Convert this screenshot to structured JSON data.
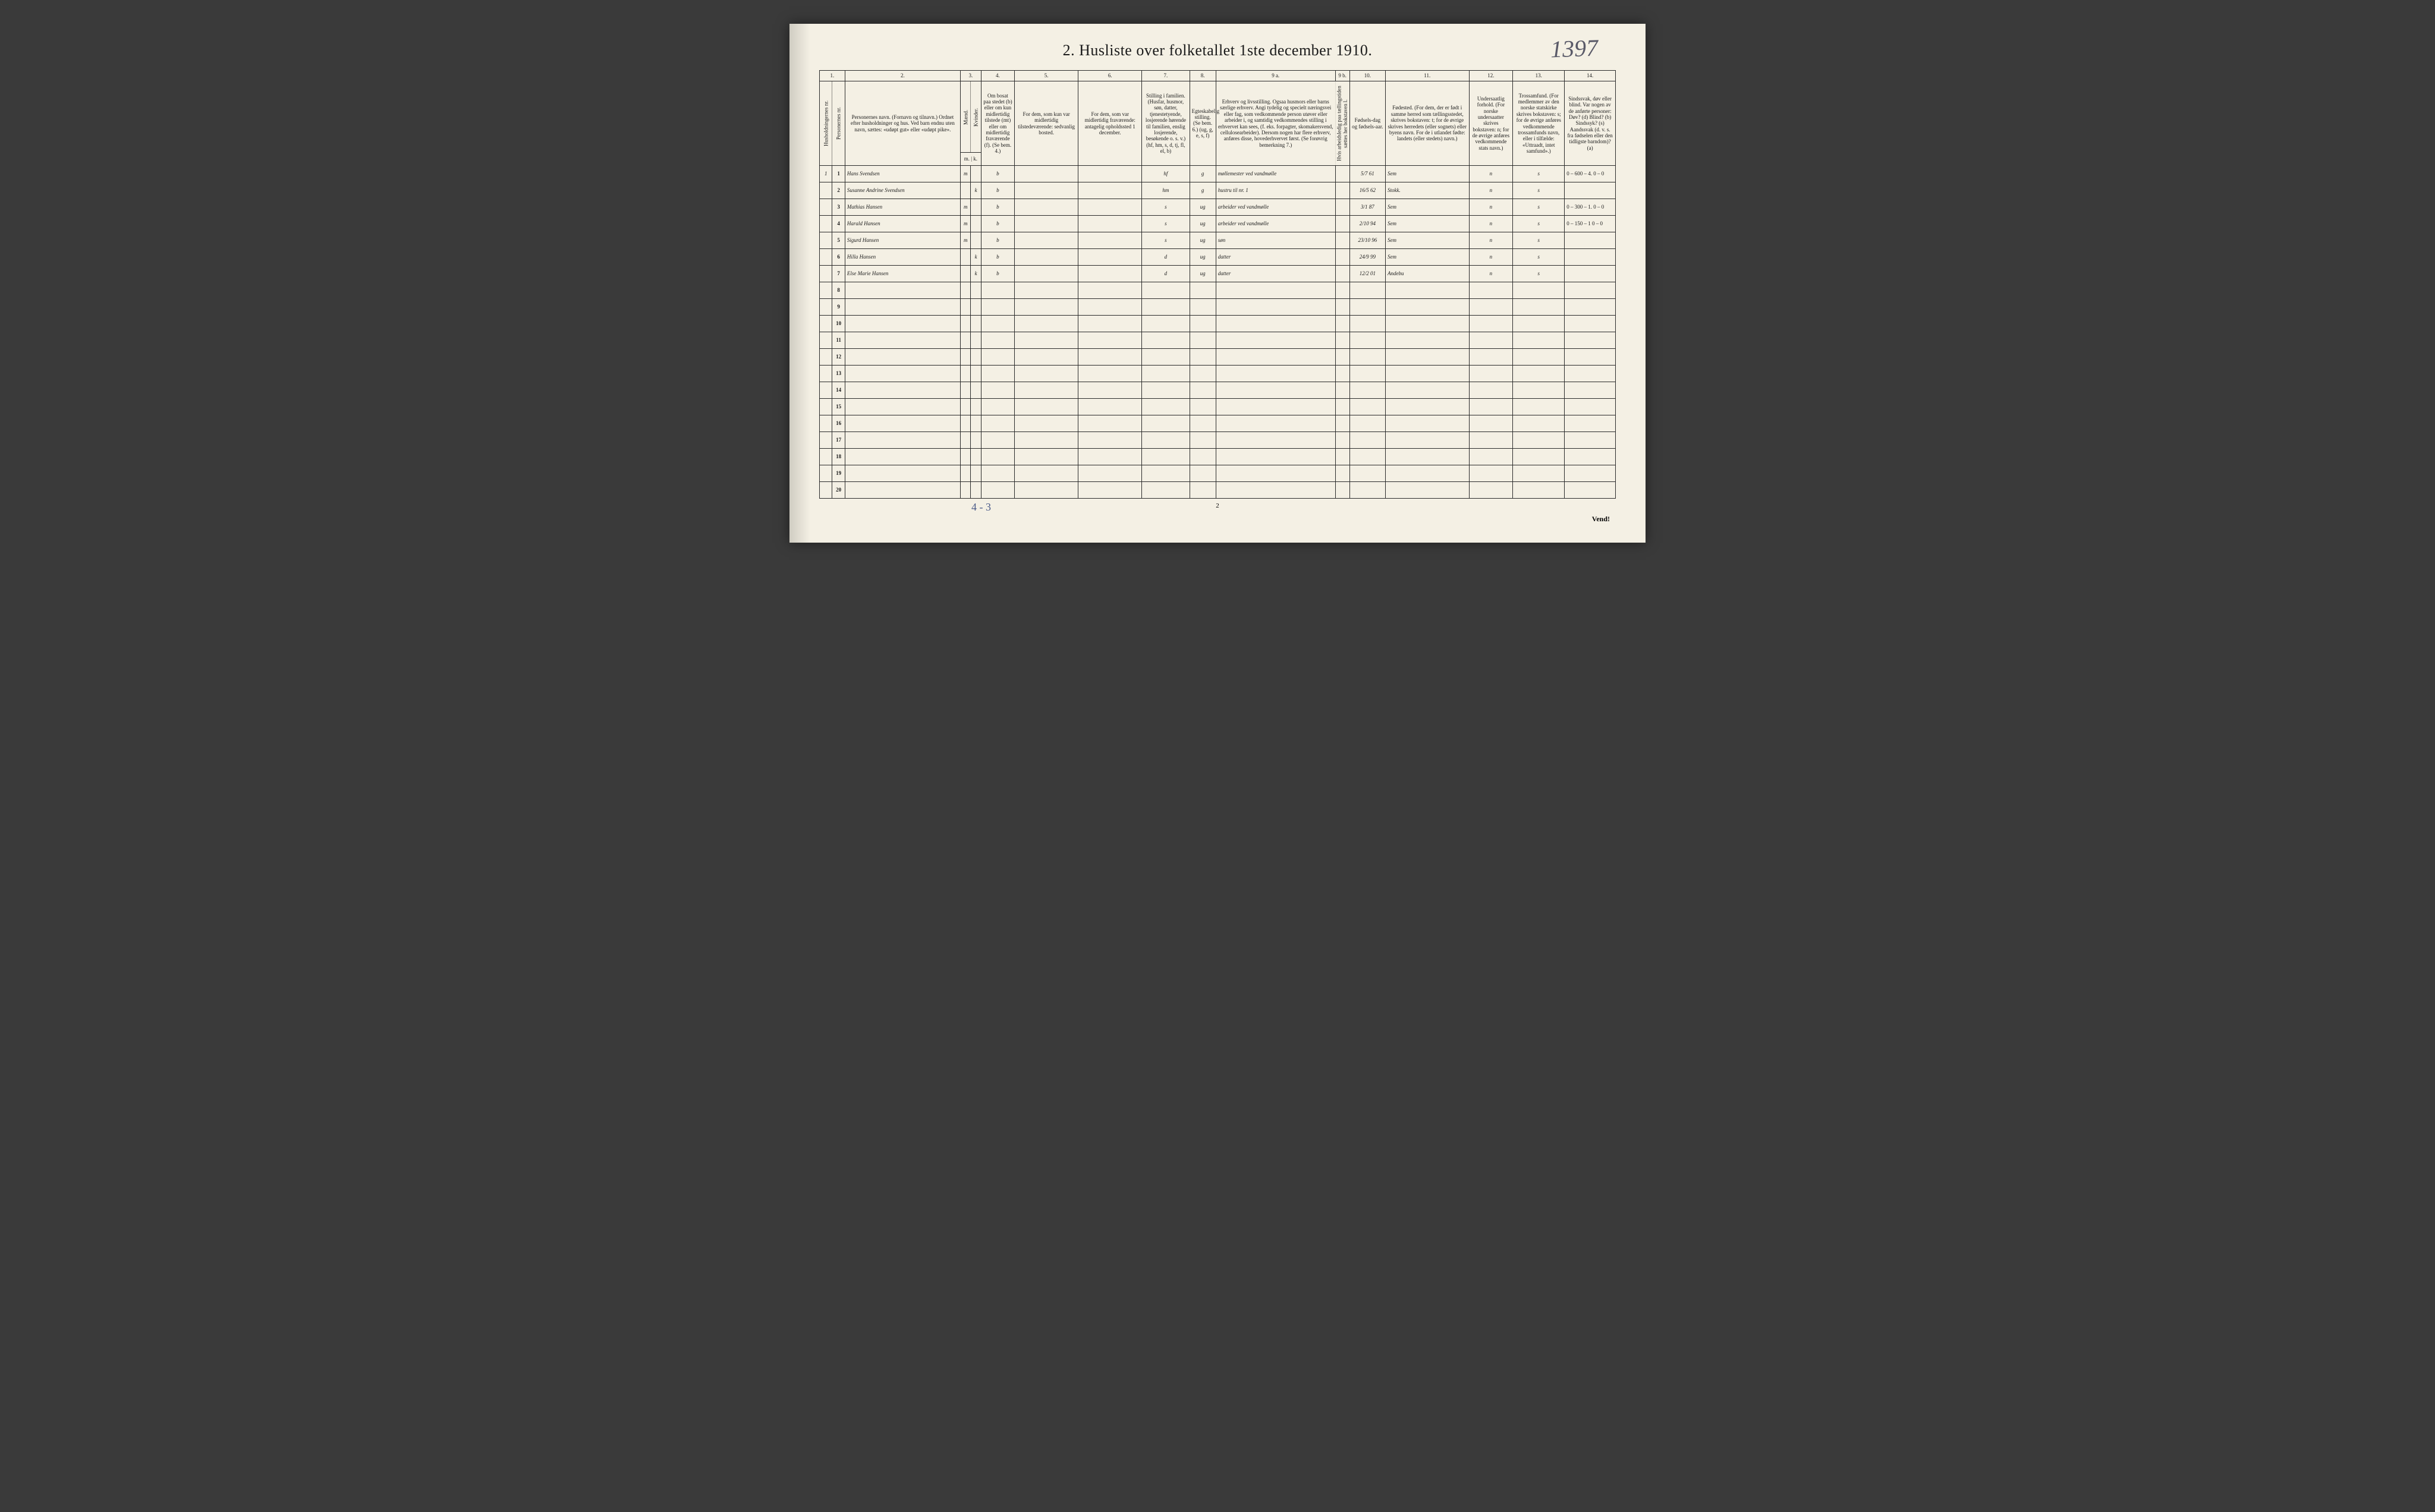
{
  "page": {
    "title": "2.  Husliste over folketallet 1ste december 1910.",
    "corner_handwritten": "1397",
    "bottom_page_num": "2",
    "bottom_sum": "4 - 3",
    "vend": "Vend!"
  },
  "columns": {
    "nums": [
      "1.",
      "2.",
      "3.",
      "4.",
      "5.",
      "6.",
      "7.",
      "8.",
      "9 a.",
      "9 b.",
      "10.",
      "11.",
      "12.",
      "13.",
      "14."
    ],
    "c1": "Husholdningernes nr.",
    "c1b": "Personernes nr.",
    "c2": "Personernes navn.\n(Fornavn og tilnavn.)\nOrdnet efter husholdninger og hus.\nVed barn endnu uten navn, sættes: «udøpt gut» eller «udøpt pike».",
    "c3": "Kjøn.",
    "c3a": "Mænd.",
    "c3b": "Kvinder.",
    "c3sub": "m. | k.",
    "c4": "Om bosat paa stedet (b) eller om kun midlertidig tilstede (mt) eller om midlertidig fraværende (f). (Se bem. 4.)",
    "c5": "For dem, som kun var midlertidig tilstedeværende:\nsedvanlig bosted.",
    "c6": "For dem, som var midlertidig fraværende:\nantagelig opholdssted 1 december.",
    "c7": "Stilling i familien.\n(Husfar, husmor, søn, datter, tjenestetyende, losjerende hørende til familien, enslig losjerende, besøkende o. s. v.)\n(hf, hm, s, d, tj, fl, el, b)",
    "c8": "Egteskabelig stilling.\n(Se bem. 6.)\n(ug, g, e, s, f)",
    "c9a": "Erhverv og livsstilling.\nOgsaa husmors eller barns særlige erhverv. Angi tydelig og specielt næringsvei eller fag, som vedkommende person utøver eller arbeider i, og samtidig vedkommendes stilling i erhvervet kan sees, (f. eks. forpagter, skomakersvend, cellulosearbeider). Dersom nogen har flere erhverv, anføres disse, hovederhvervet først. (Se forøvrig bemerkning 7.)",
    "c9b": "Hvis arbeidsledig paa tællingstiden sættes her bokstaven l.",
    "c10": "Fødsels-dag og fødsels-aar.",
    "c11": "Fødested.\n(For dem, der er født i samme herred som tællingsstedet, skrives bokstaven: t; for de øvrige skrives herredets (eller sognets) eller byens navn. For de i utlandet fødte: landets (eller stedets) navn.)",
    "c12": "Undersaatlig forhold.\n(For norske undersaatter skrives bokstaven: n; for de øvrige anføres vedkommende stats navn.)",
    "c13": "Trossamfund.\n(For medlemmer av den norske statskirke skrives bokstaven: s; for de øvrige anføres vedkommende trossamfunds navn, eller i tilfælde: «Uttraadt, intet samfund».)",
    "c14": "Sindssvak, døv eller blind.\nVar nogen av de anførte personer:\nDøv? (d)\nBlind? (b)\nSindssyk? (s)\nAandssvak (d. v. s. fra fødselen eller den tidligste barndom)? (a)"
  },
  "rows": [
    {
      "hnr": "1",
      "pnr": "1",
      "name": "Hans Svendsen",
      "sex": "m",
      "res": "b",
      "c5": "",
      "c6": "",
      "fam": "hf",
      "civ": "g",
      "occ": "møllemester ved vandmølle",
      "c9b": "",
      "dob": "5/7 61",
      "birthplace": "Sem",
      "nat": "n",
      "rel": "s",
      "note": "0 – 600 – 4.\n0 – 0"
    },
    {
      "hnr": "",
      "pnr": "2",
      "name": "Susanne Andrine Svendsen",
      "sex": "k",
      "res": "b",
      "c5": "",
      "c6": "",
      "fam": "hm",
      "civ": "g",
      "occ": "hustru til nr. 1",
      "c9b": "",
      "dob": "16/5 62",
      "birthplace": "Stokk.",
      "nat": "n",
      "rel": "s",
      "note": ""
    },
    {
      "hnr": "",
      "pnr": "3",
      "name": "Mathias Hansen",
      "sex": "m",
      "res": "b",
      "c5": "",
      "c6": "",
      "fam": "s",
      "civ": "ug",
      "occ": "arbeider ved vandmølle",
      "c9b": "",
      "dob": "3/1 87",
      "birthplace": "Sem",
      "nat": "n",
      "rel": "s",
      "note": "0 – 300 – 1.\n0 – 0"
    },
    {
      "hnr": "",
      "pnr": "4",
      "name": "Harald Hansen",
      "sex": "m",
      "res": "b",
      "c5": "",
      "c6": "",
      "fam": "s",
      "civ": "ug",
      "occ": "arbeider ved vandmølle",
      "c9b": "",
      "dob": "2/10 94",
      "birthplace": "Sem",
      "nat": "n",
      "rel": "s",
      "note": "0 – 150 – 1\n0 – 0"
    },
    {
      "hnr": "",
      "pnr": "5",
      "name": "Sigurd Hansen",
      "sex": "m",
      "res": "b",
      "c5": "",
      "c6": "",
      "fam": "s",
      "civ": "ug",
      "occ": "søn",
      "c9b": "",
      "dob": "23/10 96",
      "birthplace": "Sem",
      "nat": "n",
      "rel": "s",
      "note": ""
    },
    {
      "hnr": "",
      "pnr": "6",
      "name": "Hilla Hansen",
      "sex": "k",
      "res": "b",
      "c5": "",
      "c6": "",
      "fam": "d",
      "civ": "ug",
      "occ": "datter",
      "c9b": "",
      "dob": "24/9 99",
      "birthplace": "Sem",
      "nat": "n",
      "rel": "s",
      "note": ""
    },
    {
      "hnr": "",
      "pnr": "7",
      "name": "Else Marie Hansen",
      "sex": "k",
      "res": "b",
      "c5": "",
      "c6": "",
      "fam": "d",
      "civ": "ug",
      "occ": "datter",
      "c9b": "",
      "dob": "12/2 01",
      "birthplace": "Andebu",
      "nat": "n",
      "rel": "s",
      "note": ""
    }
  ],
  "row_count": 20,
  "colwidths_pct": [
    1.6,
    1.6,
    14.5,
    1.3,
    1.3,
    4.2,
    8.0,
    8.0,
    6.0,
    3.3,
    15.0,
    1.8,
    4.5,
    10.5,
    5.5,
    6.5,
    6.4
  ],
  "colors": {
    "paper": "#f4f0e4",
    "ink": "#1a1a1a",
    "pen": "#3a4a7a",
    "pencil": "#4a4a58",
    "border": "#2a2a2a"
  }
}
